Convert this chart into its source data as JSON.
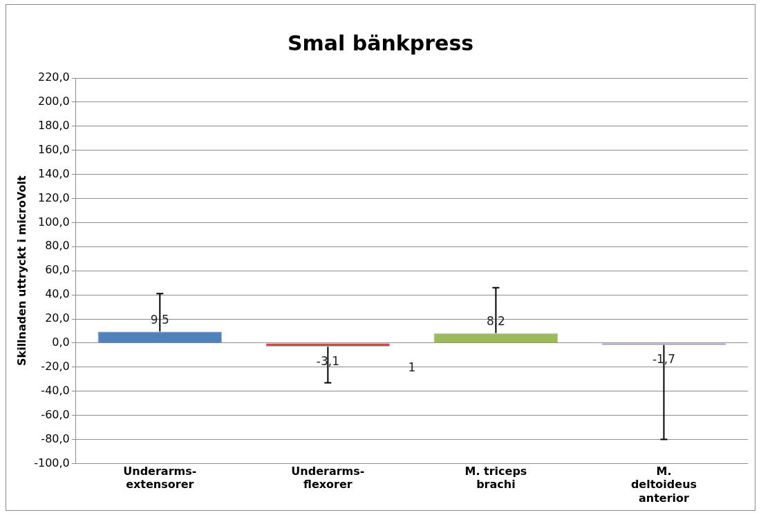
{
  "chart_data": {
    "type": "bar",
    "title": "Smal bänkpress",
    "ylabel": "Skillnaden uttryckt i microVolt",
    "categories": [
      "Underarms-\nextensorer",
      "Underarms-\nflexorer",
      "M. triceps\nbrachi",
      "M.\ndeltoideus\nanterior"
    ],
    "values": [
      9.5,
      -3.1,
      8.2,
      -1.7
    ],
    "colors": [
      "#4f81bd",
      "#c0504d",
      "#9bbb59",
      "#8064a2"
    ],
    "errors": [
      [
        9.5,
        41
      ],
      [
        -33,
        -3.1
      ],
      [
        8.2,
        46
      ],
      [
        -80,
        -1.7
      ]
    ],
    "value_labels": [
      "9,5",
      "-3,1",
      "8,2",
      "-1,7"
    ],
    "annotations": [
      "1"
    ],
    "ylim": [
      -100,
      220
    ],
    "yticks": [
      {
        "value": -100,
        "label": "-100,0"
      },
      {
        "value": -80,
        "label": "-80,0"
      },
      {
        "value": -60,
        "label": "-60,0"
      },
      {
        "value": -40,
        "label": "-40,0"
      },
      {
        "value": -20,
        "label": "-20,0"
      },
      {
        "value": 0,
        "label": "0,0"
      },
      {
        "value": 20,
        "label": "20,0"
      },
      {
        "value": 40,
        "label": "40,0"
      },
      {
        "value": 60,
        "label": "60,0"
      },
      {
        "value": 80,
        "label": "80,0"
      },
      {
        "value": 100,
        "label": "100,0"
      },
      {
        "value": 120,
        "label": "120,0"
      },
      {
        "value": 140,
        "label": "140,0"
      },
      {
        "value": 160,
        "label": "160,0"
      },
      {
        "value": 180,
        "label": "180,0"
      },
      {
        "value": 200,
        "label": "200,0"
      },
      {
        "value": 220,
        "label": "220,0"
      }
    ],
    "grid": "y",
    "legend": false
  }
}
